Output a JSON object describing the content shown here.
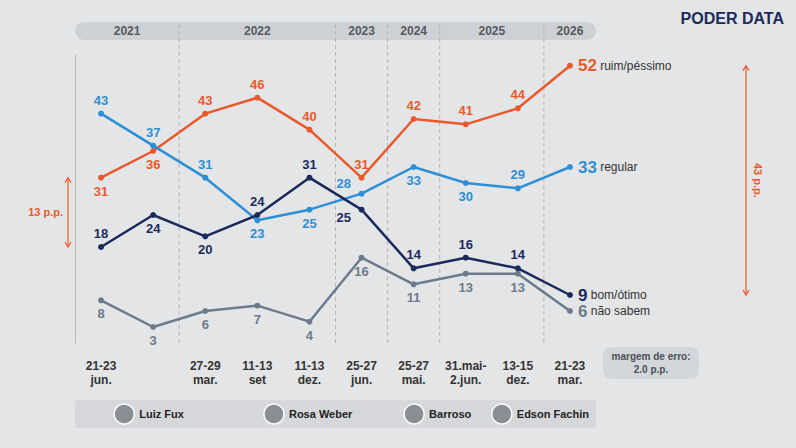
{
  "chart_data": {
    "type": "line",
    "logo": "PODER DATA",
    "categories": [
      "21-23 jun.",
      null,
      "27-29 mar.",
      "11-13 set",
      "11-13 dez.",
      "25-27 jun.",
      "25-27 mai.",
      "31.mai-2.jun.",
      "13-15 dez.",
      "21-23 mar."
    ],
    "years": [
      "2021",
      "2021",
      "2022",
      "2022",
      "2022",
      "2023",
      "2024",
      "2025",
      "2025",
      "2026"
    ],
    "presidents": [
      "Luiz Fux",
      "Luiz Fux",
      "Luiz Fux",
      "Rosa Weber",
      "Rosa Weber",
      "Rosa Weber",
      "Barroso",
      "Barroso",
      "Edson Fachin",
      "Edson Fachin"
    ],
    "series": [
      {
        "name": "ruim/péssimo",
        "color": "#e9592b",
        "values": [
          31,
          36,
          43,
          46,
          40,
          31,
          42,
          41,
          44,
          52
        ]
      },
      {
        "name": "regular",
        "color": "#2d8fd5",
        "values": [
          43,
          37,
          31,
          23,
          25,
          28,
          33,
          30,
          29,
          33
        ]
      },
      {
        "name": "bom/ótimo",
        "color": "#1b2a5c",
        "values": [
          18,
          24,
          20,
          24,
          31,
          25,
          14,
          16,
          14,
          9
        ]
      },
      {
        "name": "não sabem",
        "color": "#6b7b8c",
        "values": [
          8,
          3,
          6,
          7,
          4,
          16,
          11,
          13,
          13,
          6
        ]
      }
    ],
    "ylim": [
      0,
      54
    ],
    "grid": false,
    "data_labels": true,
    "tick_labels": "x",
    "annotations": [
      {
        "text": "13 p.p.",
        "between": [
          "ruim/péssimo",
          "bom/ótimo"
        ],
        "at": "21-23 jun."
      },
      {
        "text": "43 p.p.",
        "between": [
          "ruim/péssimo",
          "bom/ótimo"
        ],
        "at": "21-23 mar."
      },
      {
        "text": "margem de erro: 2.0 p.p."
      }
    ]
  }
}
